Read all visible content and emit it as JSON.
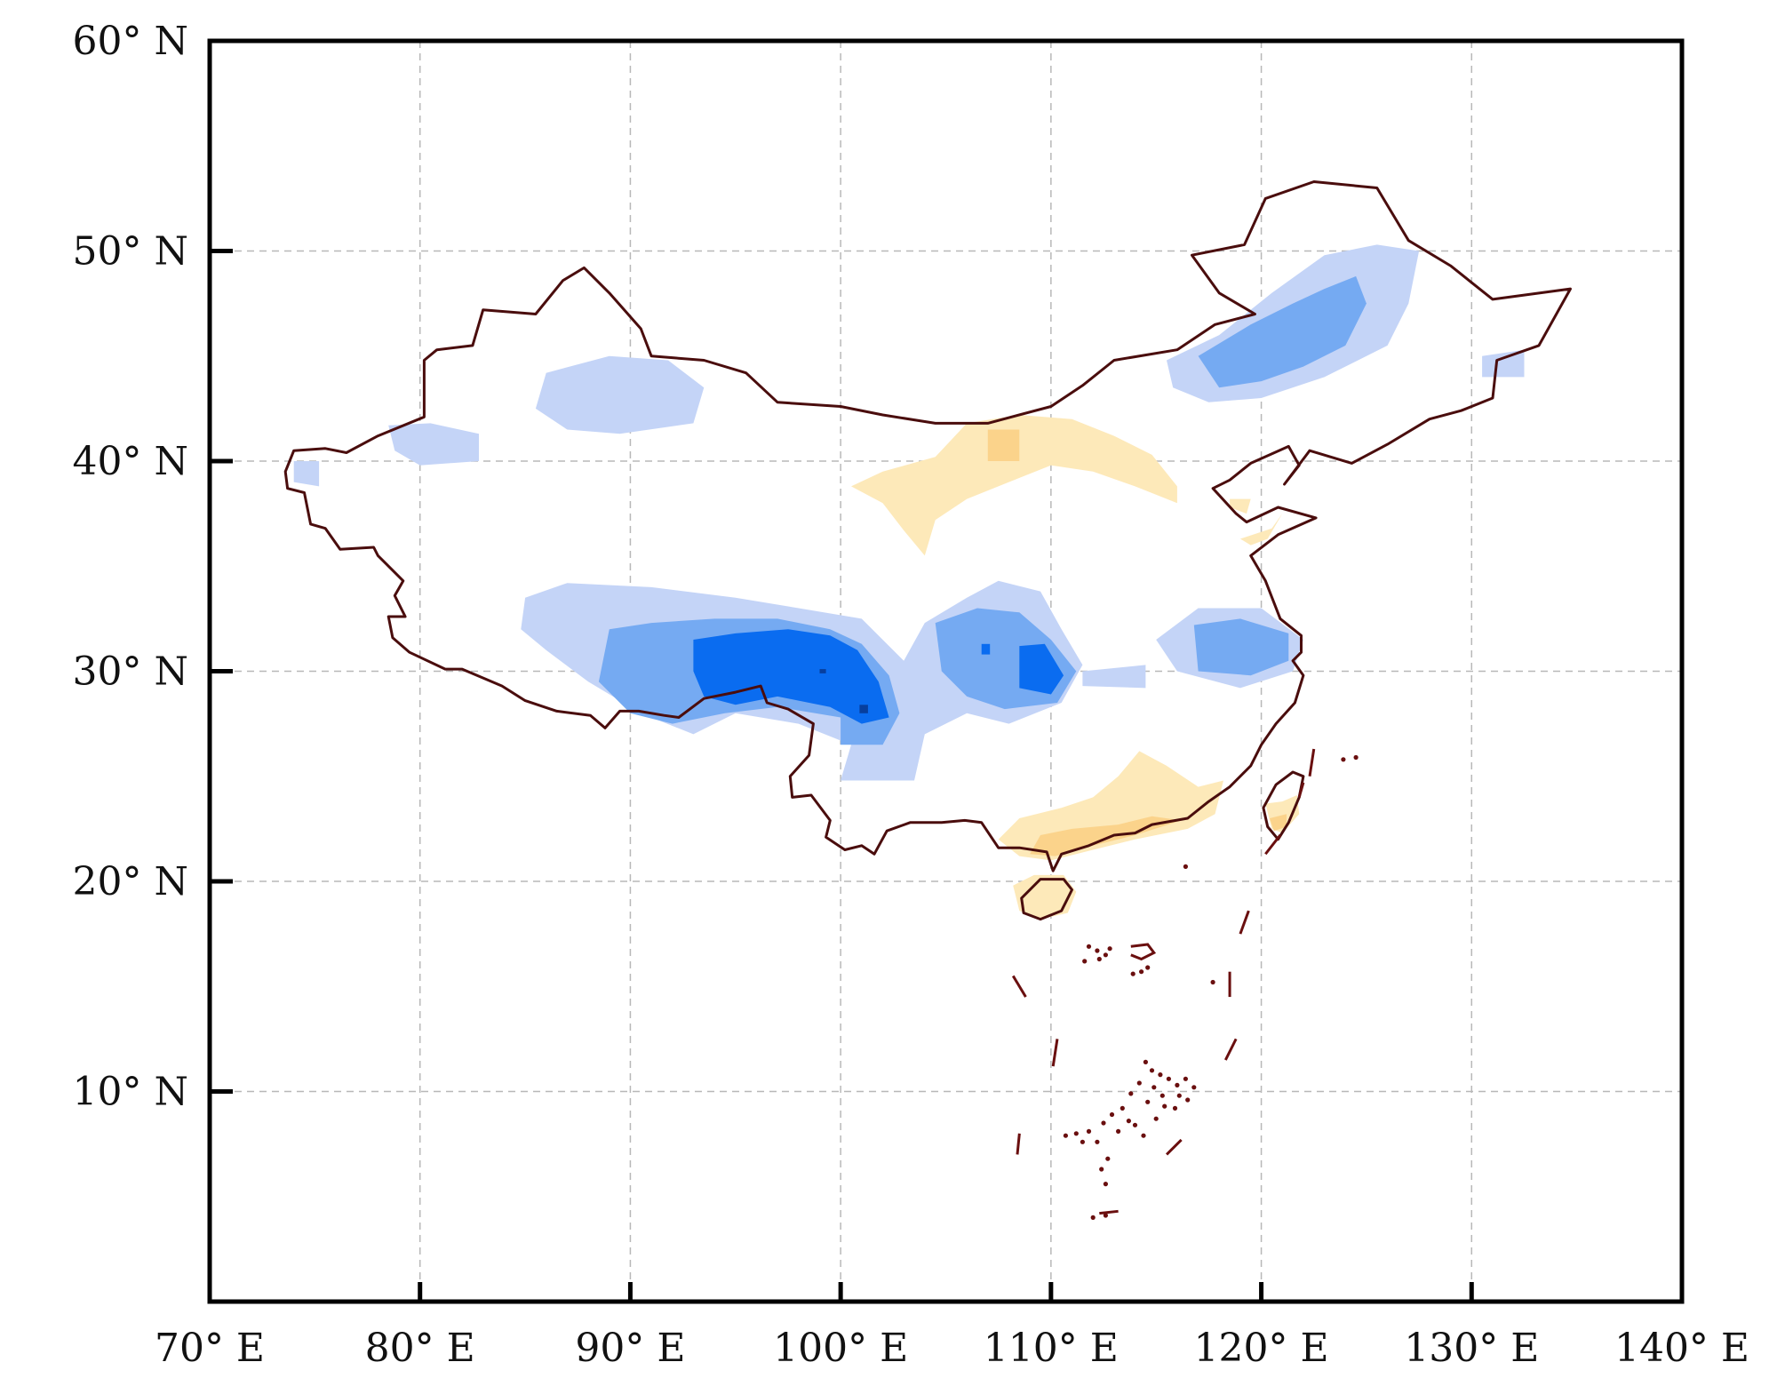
{
  "map": {
    "lon_range": [
      70,
      140
    ],
    "lat_range": [
      0,
      60
    ],
    "grid": true,
    "x_ticks": [
      {
        "value": 70,
        "label": "70° E"
      },
      {
        "value": 80,
        "label": "80° E"
      },
      {
        "value": 90,
        "label": "90° E"
      },
      {
        "value": 100,
        "label": "100° E"
      },
      {
        "value": 110,
        "label": "110° E"
      },
      {
        "value": 120,
        "label": "120° E"
      },
      {
        "value": 130,
        "label": "130° E"
      },
      {
        "value": 140,
        "label": "140° E"
      }
    ],
    "y_ticks": [
      {
        "value": 60,
        "label": "60° N"
      },
      {
        "value": 50,
        "label": "50° N"
      },
      {
        "value": 40,
        "label": "40° N"
      },
      {
        "value": 30,
        "label": "30° N"
      },
      {
        "value": 20,
        "label": "20° N"
      },
      {
        "value": 10,
        "label": "10° N"
      }
    ],
    "colors": {
      "border": "#4a0d0d",
      "blue_light": "#c4d4f7",
      "blue_mid": "#75aaf2",
      "blue_dark": "#0a6cf0",
      "blue_darkest": "#073f9e",
      "orange_light": "#fde9b9",
      "orange_mid": "#fbd38b"
    }
  }
}
